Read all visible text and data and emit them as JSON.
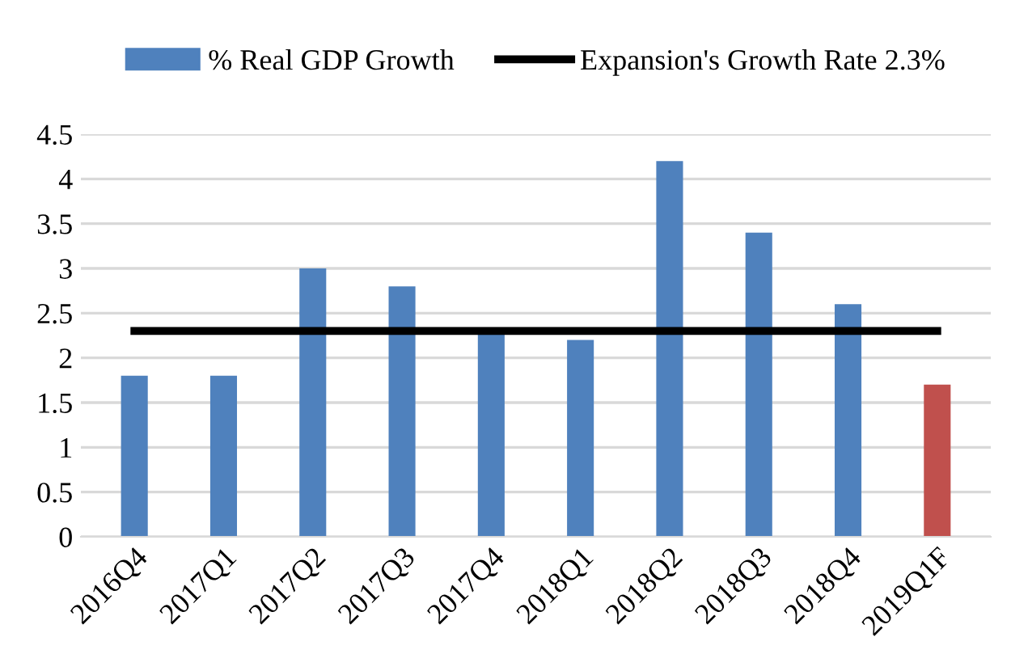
{
  "chart_data": {
    "type": "bar",
    "categories": [
      "2016Q4",
      "2017Q1",
      "2017Q2",
      "2017Q3",
      "2017Q4",
      "2018Q1",
      "2018Q2",
      "2018Q3",
      "2018Q4",
      "2019Q1F"
    ],
    "series": [
      {
        "name": "% Real GDP Growth",
        "color": "#4f81bd",
        "colors": [
          "#4f81bd",
          "#4f81bd",
          "#4f81bd",
          "#4f81bd",
          "#4f81bd",
          "#4f81bd",
          "#4f81bd",
          "#4f81bd",
          "#4f81bd",
          "#c0504d"
        ],
        "values": [
          1.8,
          1.8,
          3.0,
          2.8,
          2.3,
          2.2,
          4.2,
          3.4,
          2.6,
          1.7
        ]
      },
      {
        "name": "Expansion's Growth Rate 2.3%",
        "type": "line",
        "color": "#000000",
        "values": [
          2.3,
          2.3,
          2.3,
          2.3,
          2.3,
          2.3,
          2.3,
          2.3,
          2.3,
          2.3
        ]
      }
    ],
    "ylim": [
      0,
      4.5
    ],
    "yticks": [
      0,
      0.5,
      1,
      1.5,
      2,
      2.5,
      3,
      3.5,
      4,
      4.5
    ],
    "grid": "y",
    "legend": "top",
    "marker": "none",
    "line_style": "solid"
  }
}
